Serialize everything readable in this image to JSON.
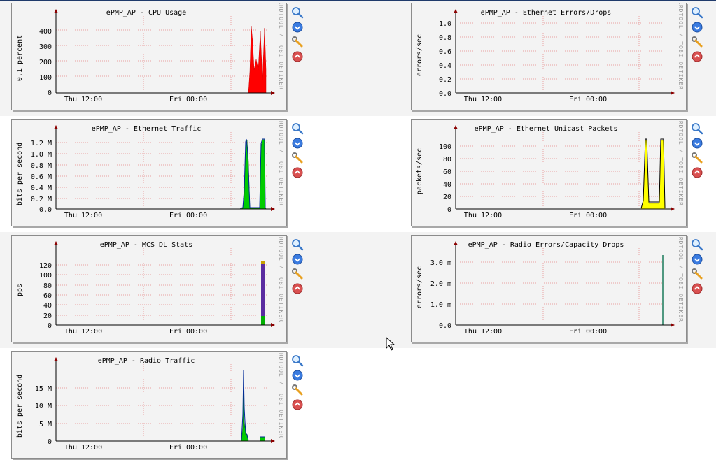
{
  "watermark": "RRDTOOL / TOBI OETIKER",
  "icons": [
    "zoom-icon",
    "download-icon",
    "edit-icon",
    "move-up-icon"
  ],
  "graphs": [
    {
      "id": "cpu",
      "title": "ePMP_AP - CPU Usage",
      "ylabel": "0.1 percent",
      "yticks": [
        "400",
        "300",
        "200",
        "100",
        "0"
      ],
      "xticks": [
        "Thu 12:00",
        "Fri 00:00"
      ]
    },
    {
      "id": "eth_err",
      "title": "ePMP_AP - Ethernet Errors/Drops",
      "ylabel": "errors/sec",
      "yticks": [
        "1.0",
        "0.8",
        "0.6",
        "0.4",
        "0.2",
        "0.0"
      ],
      "xticks": [
        "Thu 12:00",
        "Fri 00:00"
      ]
    },
    {
      "id": "eth_traffic",
      "title": "ePMP_AP - Ethernet Traffic",
      "ylabel": "bits per second",
      "yticks": [
        "1.2 M",
        "1.0 M",
        "0.8 M",
        "0.6 M",
        "0.4 M",
        "0.2 M",
        "0.0"
      ],
      "xticks": [
        "Thu 12:00",
        "Fri 00:00"
      ]
    },
    {
      "id": "eth_unicast",
      "title": "ePMP_AP - Ethernet Unicast Packets",
      "ylabel": "packets/sec",
      "yticks": [
        "100",
        "80",
        "60",
        "40",
        "20",
        "0"
      ],
      "xticks": [
        "Thu 12:00",
        "Fri 00:00"
      ]
    },
    {
      "id": "mcs_dl",
      "title": "ePMP_AP - MCS DL Stats",
      "ylabel": "pps",
      "yticks": [
        "120",
        "100",
        "80",
        "60",
        "40",
        "20",
        "0"
      ],
      "xticks": [
        "Thu 12:00",
        "Fri 00:00"
      ]
    },
    {
      "id": "radio_err",
      "title": "ePMP_AP - Radio Errors/Capacity Drops",
      "ylabel": "errors/sec",
      "yticks": [
        "3.0 m",
        "2.0 m",
        "1.0 m",
        "0.0"
      ],
      "xticks": [
        "Thu 12:00",
        "Fri 00:00"
      ]
    },
    {
      "id": "radio_traffic",
      "title": "ePMP_AP - Radio Traffic",
      "ylabel": "bits per second",
      "yticks": [
        "15 M",
        "10 M",
        "5 M",
        "0"
      ],
      "xticks": [
        "Thu 12:00",
        "Fri 00:00"
      ]
    }
  ]
}
